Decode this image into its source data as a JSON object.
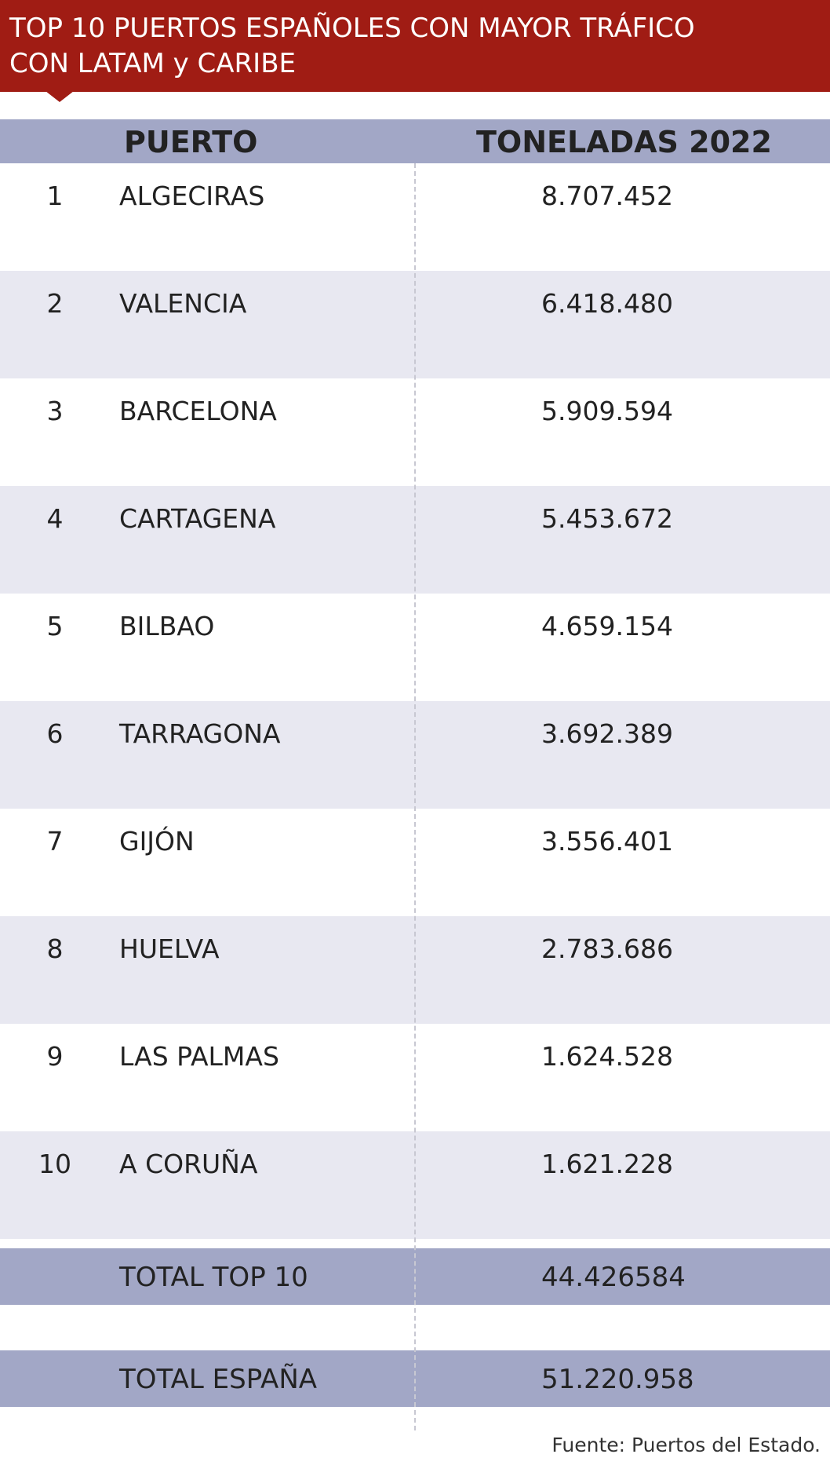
{
  "title": {
    "line1": "TOP 10 PUERTOS ESPAÑOLES CON MAYOR TRÁFICO",
    "line2": "CON LATAM y CARIBE"
  },
  "table": {
    "headers": {
      "port": "PUERTO",
      "tons": "TONELADAS 2022"
    },
    "rows": [
      {
        "rank": "1",
        "name": "ALGECIRAS",
        "tons": "8.707.452"
      },
      {
        "rank": "2",
        "name": "VALENCIA",
        "tons": "6.418.480"
      },
      {
        "rank": "3",
        "name": "BARCELONA",
        "tons": "5.909.594"
      },
      {
        "rank": "4",
        "name": "CARTAGENA",
        "tons": "5.453.672"
      },
      {
        "rank": "5",
        "name": "BILBAO",
        "tons": "4.659.154"
      },
      {
        "rank": "6",
        "name": "TARRAGONA",
        "tons": "3.692.389"
      },
      {
        "rank": "7",
        "name": "GIJÓN",
        "tons": "3.556.401"
      },
      {
        "rank": "8",
        "name": "HUELVA",
        "tons": "2.783.686"
      },
      {
        "rank": "9",
        "name": "LAS PALMAS",
        "tons": "1.624.528"
      },
      {
        "rank": "10",
        "name": "A CORUÑA",
        "tons": "1.621.228"
      }
    ],
    "totals": [
      {
        "label": "TOTAL TOP 10",
        "value": "44.426584"
      },
      {
        "label": "TOTAL ESPAÑA",
        "value": "51.220.958"
      }
    ]
  },
  "source": "Fuente: Puertos del Estado.",
  "colors": {
    "banner": "#a01c14",
    "header": "#a2a7c6",
    "stripe": "#e8e8f1"
  }
}
